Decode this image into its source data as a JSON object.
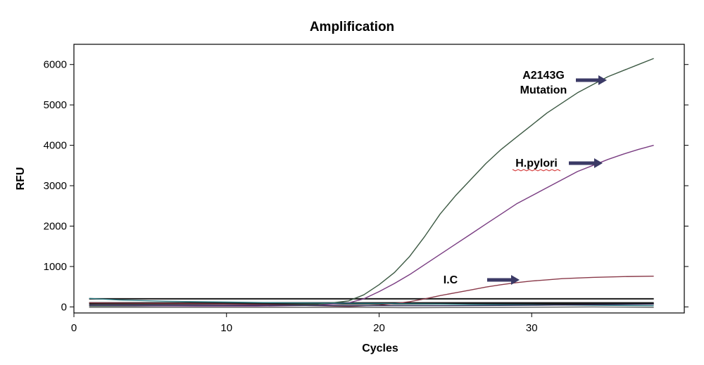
{
  "chart_data": {
    "type": "line",
    "title": "Amplification",
    "xlabel": "Cycles",
    "ylabel": "RFU",
    "xlim": [
      0,
      40
    ],
    "ylim": [
      -150,
      6500
    ],
    "xticks": [
      0,
      10,
      20,
      30
    ],
    "yticks": [
      0,
      1000,
      2000,
      3000,
      4000,
      5000,
      6000
    ],
    "grid": false,
    "series": [
      {
        "name": "A2143G Mutation",
        "color": "#3d5a44",
        "x": [
          1,
          4,
          8,
          12,
          16,
          18,
          19,
          20,
          21,
          22,
          23,
          24,
          25,
          26,
          27,
          28,
          29,
          30,
          31,
          32,
          33,
          34,
          35,
          36,
          37,
          38
        ],
        "values": [
          20,
          20,
          30,
          40,
          60,
          150,
          300,
          550,
          850,
          1250,
          1750,
          2300,
          2750,
          3150,
          3550,
          3900,
          4200,
          4500,
          4800,
          5050,
          5300,
          5500,
          5700,
          5850,
          6000,
          6150
        ]
      },
      {
        "name": "H.pylori",
        "color": "#7a3d82",
        "x": [
          1,
          4,
          8,
          12,
          16,
          18,
          19,
          20,
          21,
          22,
          23,
          24,
          25,
          26,
          27,
          28,
          29,
          30,
          31,
          32,
          33,
          34,
          35,
          36,
          37,
          38
        ],
        "values": [
          40,
          30,
          20,
          20,
          40,
          100,
          200,
          380,
          580,
          800,
          1050,
          1300,
          1550,
          1800,
          2050,
          2300,
          2550,
          2750,
          2950,
          3150,
          3350,
          3500,
          3650,
          3780,
          3900,
          4000
        ]
      },
      {
        "name": "I.C",
        "color": "#8a3a4a",
        "x": [
          1,
          4,
          8,
          12,
          16,
          18,
          20,
          21,
          22,
          23,
          24,
          25,
          26,
          27,
          28,
          29,
          30,
          31,
          32,
          34,
          36,
          38
        ],
        "values": [
          100,
          90,
          80,
          60,
          30,
          10,
          40,
          80,
          130,
          200,
          280,
          350,
          420,
          490,
          550,
          600,
          640,
          670,
          700,
          730,
          750,
          760
        ]
      },
      {
        "color": "#2e7f86",
        "x": [
          1,
          3,
          6,
          10,
          14,
          18,
          22,
          26,
          30,
          34,
          38
        ],
        "values": [
          210,
          170,
          140,
          120,
          100,
          90,
          80,
          60,
          50,
          40,
          30
        ]
      },
      {
        "color": "#2a2a55",
        "x": [
          1,
          6,
          12,
          18,
          24,
          30,
          38
        ],
        "values": [
          40,
          40,
          40,
          30,
          30,
          40,
          70
        ]
      },
      {
        "color": "#666666",
        "x": [
          1,
          6,
          12,
          18,
          22,
          28,
          34,
          38
        ],
        "values": [
          -10,
          -10,
          -10,
          -10,
          -20,
          -10,
          0,
          -10
        ]
      }
    ],
    "thresholds": [
      {
        "value": 200,
        "color": "#1a1a1a"
      },
      {
        "value": 100,
        "color": "#1a1a1a"
      },
      {
        "value": 75,
        "color": "#1a1a1a"
      }
    ],
    "annotations": [
      {
        "lines": [
          "A2143G",
          "Mutation"
        ],
        "series": "A2143G Mutation",
        "arrow_color": "#3b3a66"
      },
      {
        "lines": [
          "H.pylori"
        ],
        "series": "H.pylori",
        "arrow_color": "#3b3a66",
        "spell_underline": true
      },
      {
        "lines": [
          "I.C"
        ],
        "series": "I.C",
        "arrow_color": "#3b3a66"
      }
    ]
  }
}
